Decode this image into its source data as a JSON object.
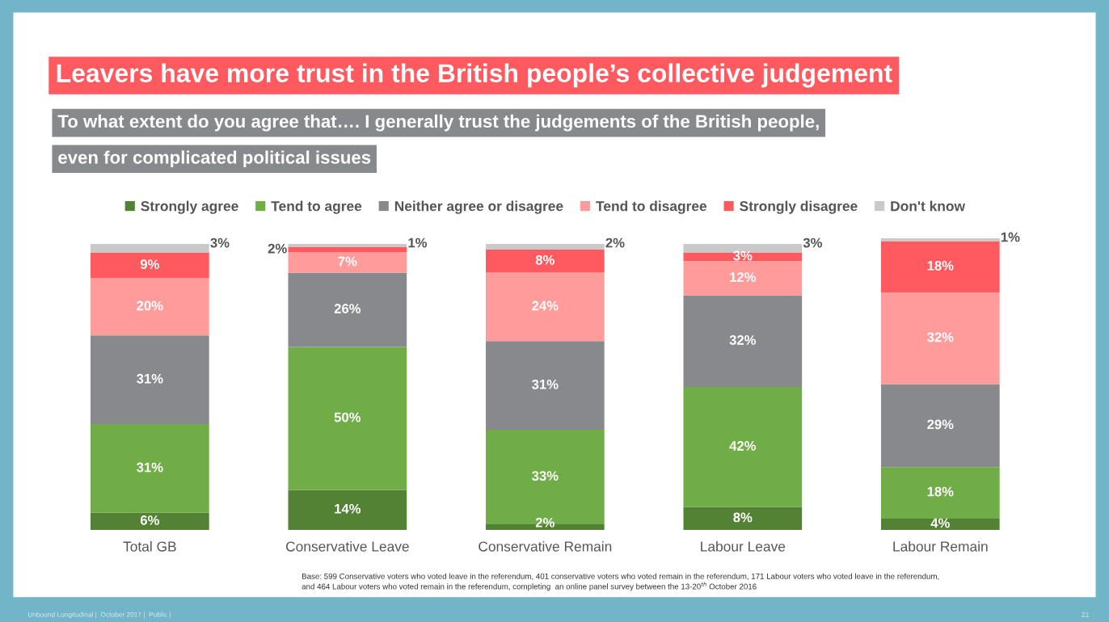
{
  "chart_data": {
    "type": "bar",
    "stacked": true,
    "legend": "top",
    "title": "Leavers have more trust in the British people’s collective judgement",
    "subtitle": "To what extent do you agree that…. I generally trust the judgements of the British people,\neven for complicated political issues",
    "categories": [
      "Total GB",
      "Conservative Leave",
      "Conservative Remain",
      "Labour Leave",
      "Labour Remain"
    ],
    "series": [
      {
        "name": "Strongly agree",
        "color": "#548235",
        "values": [
          6,
          14,
          2,
          8,
          4
        ],
        "value_labels": [
          "6%",
          "14%",
          "2%",
          "8%",
          "4%"
        ]
      },
      {
        "name": "Tend to agree",
        "color": "#70ad47",
        "values": [
          31,
          50,
          33,
          42,
          18
        ],
        "value_labels": [
          "31%",
          "50%",
          "33%",
          "42%",
          "18%"
        ]
      },
      {
        "name": "Neither agree or disagree",
        "color": "#87898c",
        "values": [
          31,
          26,
          31,
          32,
          29
        ],
        "value_labels": [
          "31%",
          "26%",
          "31%",
          "32%",
          "29%"
        ]
      },
      {
        "name": "Tend to disagree",
        "color": "#ff9b9b",
        "values": [
          20,
          7,
          24,
          12,
          32
        ],
        "value_labels": [
          "20%",
          "7%",
          "24%",
          "12%",
          "32%"
        ]
      },
      {
        "name": "Strongly disagree",
        "color": "#ff5a5f",
        "values": [
          9,
          2,
          8,
          3,
          18
        ],
        "value_labels": [
          "9%",
          "2%",
          "8%",
          "3%",
          "18%"
        ]
      },
      {
        "name": "Don't know",
        "color": "#c9c9c9",
        "values": [
          3,
          1,
          2,
          3,
          1
        ],
        "value_labels": [
          "3%",
          "1%",
          "2%",
          "3%",
          "1%"
        ]
      }
    ],
    "annotations": [
      "Base: 599 Conservative voters who voted leave in the referendum, 401 conservative voters who voted remain in the referendum, 171 Labour voters who voted leave in the referendum,\nand 464 Labour voters who voted remain in the referendum, completing  an online panel survey between the 13-20$^{th}$ October 2016",
      "Unbound Longitudinal |  October 2017 |  Public |",
      "21"
    ]
  }
}
